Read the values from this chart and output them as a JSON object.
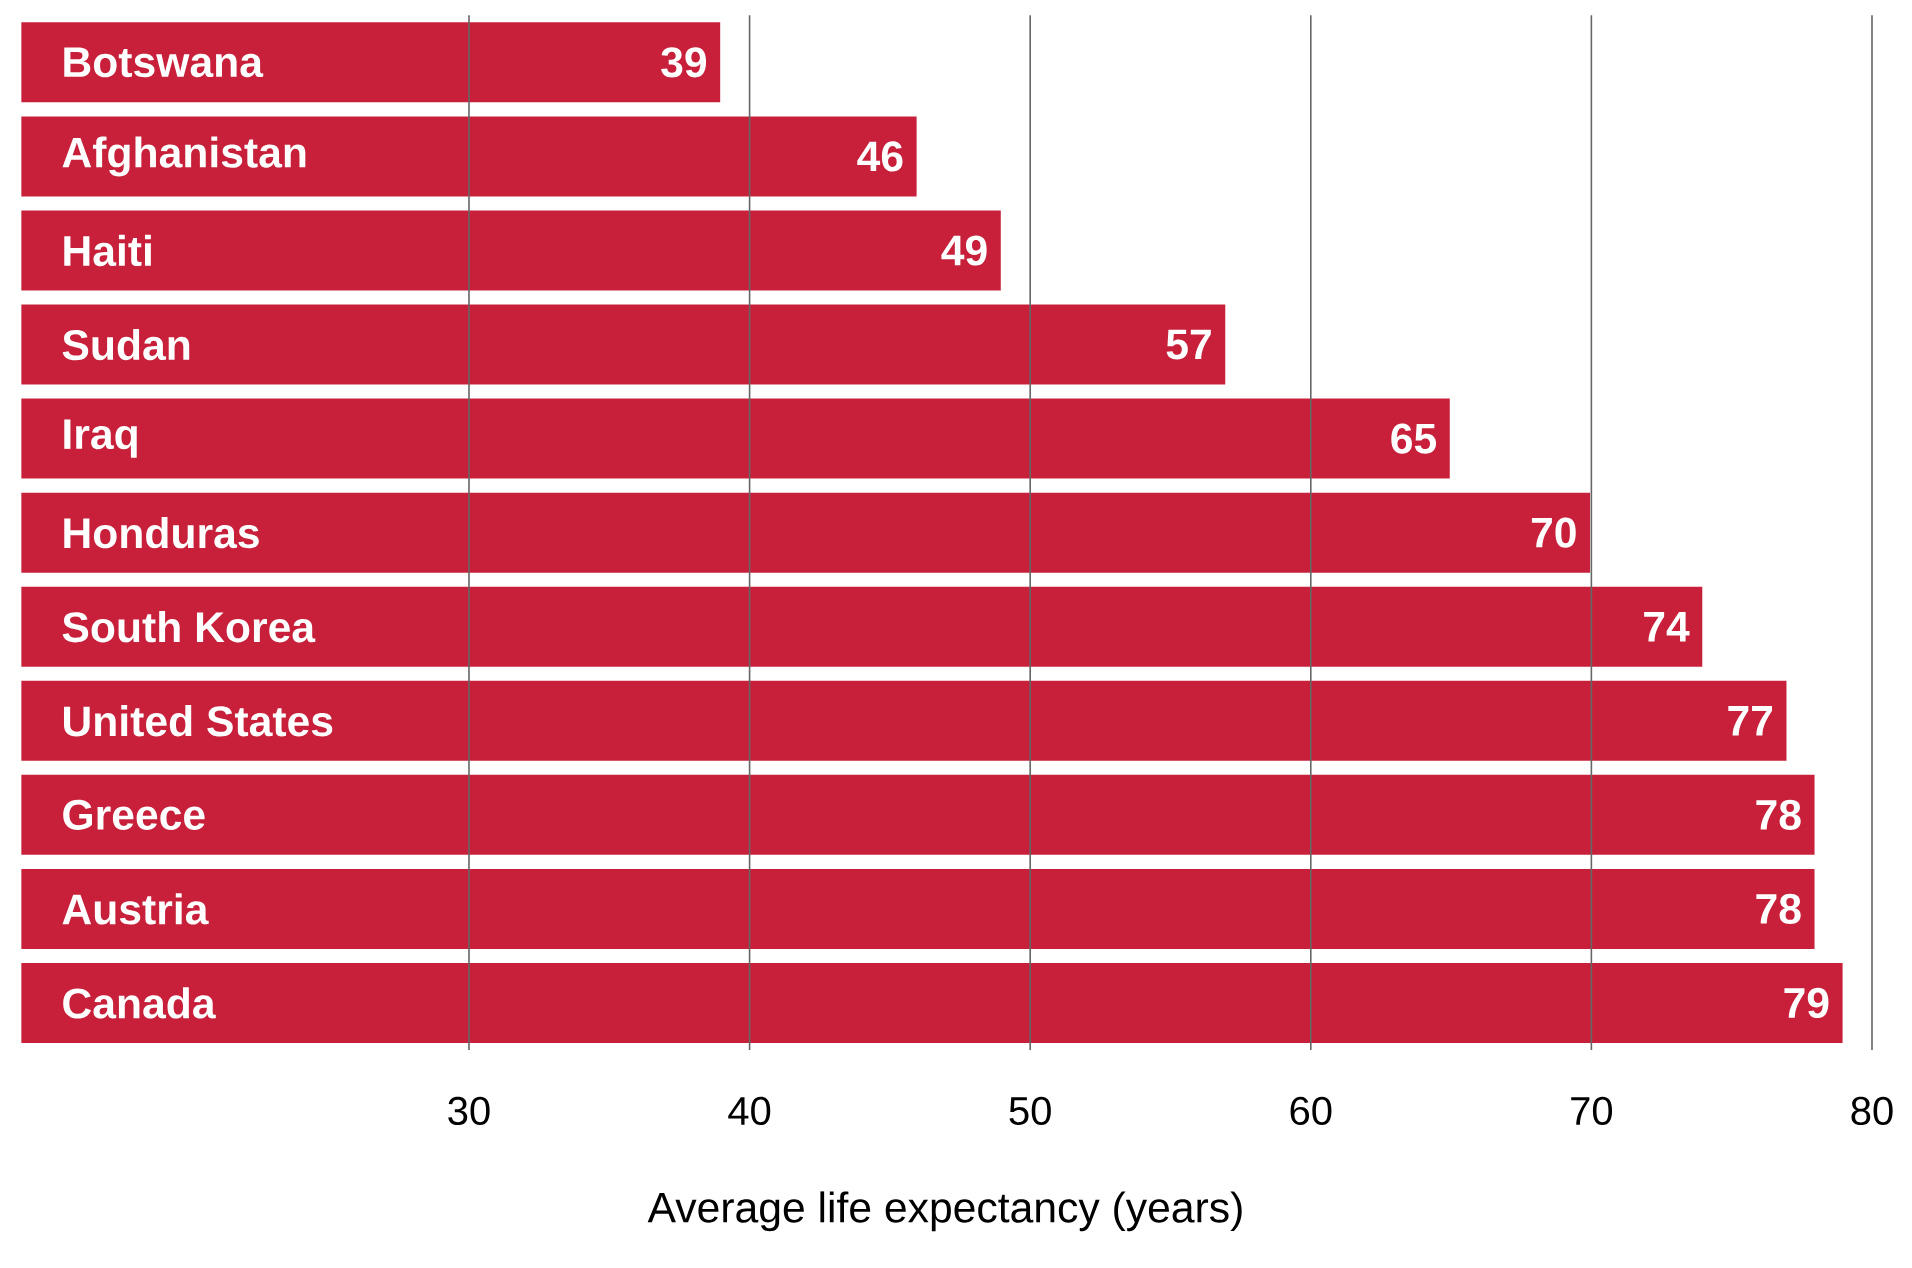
{
  "chart_data": {
    "type": "bar",
    "orientation": "horizontal",
    "xlabel": "Average life expectancy (years)",
    "categories": [
      "Botswana",
      "Afghanistan",
      "Haiti",
      "Sudan",
      "Iraq",
      "Honduras",
      "South Korea",
      "United States",
      "Greece",
      "Austria",
      "Canada"
    ],
    "values": [
      39,
      46,
      49,
      57,
      65,
      70,
      74,
      77,
      78,
      78,
      79
    ],
    "color": "#c8203a",
    "xlim": [
      14,
      80
    ],
    "xticks": [
      30,
      40,
      50,
      60,
      70,
      80
    ],
    "grid": "x",
    "data_labels": true
  }
}
